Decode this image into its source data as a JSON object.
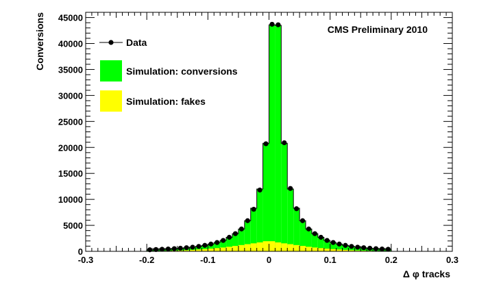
{
  "chart_data": {
    "type": "bar",
    "annotation": "CMS Preliminary 2010",
    "xlabel": "Δ φ tracks",
    "ylabel": "Conversions",
    "xlim": [
      -0.3,
      0.3
    ],
    "ylim": [
      0,
      46000
    ],
    "x_ticks": [
      -0.3,
      -0.2,
      -0.1,
      0,
      0.1,
      0.2,
      0.3
    ],
    "x_tick_labels": [
      "-0.3",
      "-0.2",
      "-0.1",
      "0",
      "0.1",
      "0.2",
      "0.3"
    ],
    "y_ticks": [
      0,
      5000,
      10000,
      15000,
      20000,
      25000,
      30000,
      35000,
      40000,
      45000
    ],
    "y_tick_labels": [
      "0",
      "5000",
      "10000",
      "15000",
      "20000",
      "25000",
      "30000",
      "35000",
      "40000",
      "45000"
    ],
    "bin_edges": [
      -0.2,
      -0.19,
      -0.18,
      -0.17,
      -0.16,
      -0.15,
      -0.14,
      -0.13,
      -0.12,
      -0.11,
      -0.1,
      -0.09,
      -0.08,
      -0.07,
      -0.06,
      -0.05,
      -0.04,
      -0.03,
      -0.02,
      -0.01,
      0.0,
      0.01,
      0.02,
      0.03,
      0.04,
      0.05,
      0.06,
      0.07,
      0.08,
      0.09,
      0.1,
      0.11,
      0.12,
      0.13,
      0.14,
      0.15,
      0.16,
      0.17,
      0.18,
      0.19,
      0.2
    ],
    "legend": {
      "position": "top-left",
      "entries": [
        {
          "label": "Data",
          "marker": "point"
        },
        {
          "label": "Simulation: conversions",
          "marker": "fill",
          "color": "#00ff00"
        },
        {
          "label": "Simulation: fakes",
          "marker": "fill",
          "color": "#ffff00"
        }
      ]
    },
    "series": [
      {
        "name": "Simulation: fakes",
        "kind": "stacked-fill",
        "color": "#ffff00",
        "values": [
          50,
          60,
          80,
          100,
          130,
          170,
          220,
          280,
          350,
          430,
          520,
          620,
          740,
          880,
          1040,
          1210,
          1380,
          1540,
          1720,
          1950,
          1950,
          1720,
          1540,
          1380,
          1210,
          1040,
          880,
          740,
          620,
          520,
          430,
          350,
          280,
          220,
          170,
          130,
          100,
          80,
          60,
          50
        ]
      },
      {
        "name": "Simulation: conversions",
        "kind": "stacked-total",
        "color": "#00ff00",
        "values": [
          300,
          350,
          400,
          450,
          520,
          600,
          700,
          800,
          950,
          1150,
          1400,
          1700,
          2100,
          2700,
          3400,
          4300,
          5900,
          8300,
          12000,
          20800,
          43600,
          43500,
          20800,
          12000,
          8300,
          5900,
          4300,
          3400,
          2700,
          2100,
          1700,
          1400,
          1150,
          950,
          800,
          700,
          600,
          520,
          450,
          400
        ]
      },
      {
        "name": "Data",
        "kind": "points",
        "color": "#000000",
        "values": [
          300,
          350,
          400,
          450,
          520,
          600,
          700,
          800,
          950,
          1150,
          1400,
          1700,
          2100,
          2700,
          3400,
          4300,
          5900,
          8100,
          11800,
          20700,
          43700,
          43600,
          20900,
          12100,
          8200,
          5900,
          4300,
          3400,
          2700,
          2100,
          1700,
          1400,
          1150,
          950,
          800,
          700,
          600,
          520,
          450,
          400
        ]
      }
    ]
  }
}
